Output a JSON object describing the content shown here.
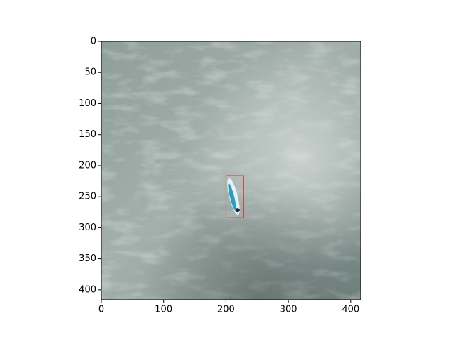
{
  "chart_data": {
    "type": "image",
    "xlim": [
      0,
      416
    ],
    "ylim": [
      416,
      0
    ],
    "xticks": [
      0,
      100,
      200,
      300,
      400
    ],
    "yticks": [
      0,
      50,
      100,
      150,
      200,
      250,
      300,
      350,
      400
    ],
    "box": {
      "x": [
        200,
        228
      ],
      "y": [
        216,
        284
      ],
      "color": "#d62728"
    }
  }
}
